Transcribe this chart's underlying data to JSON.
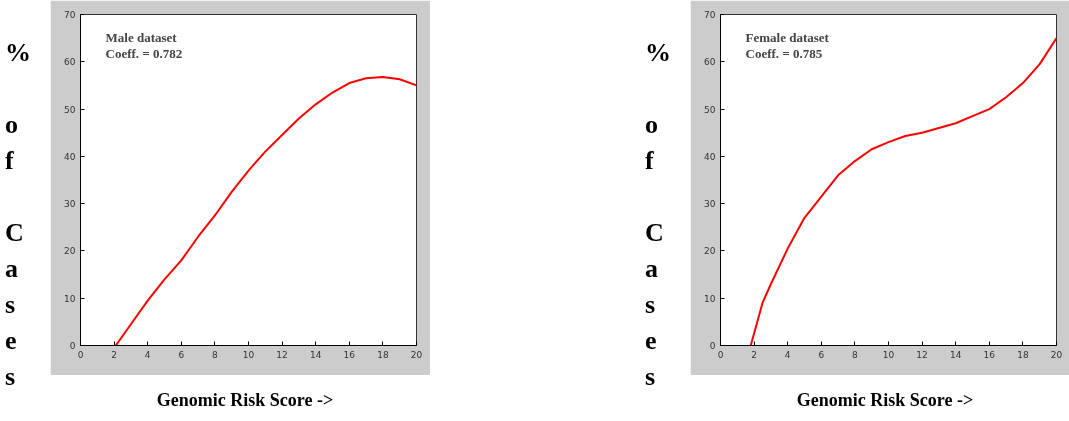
{
  "chart_data": [
    {
      "type": "line",
      "xlabel": "Genomic Risk Score ->",
      "ylabel": "% of Cases",
      "annotations": [
        "Male dataset",
        "Coeff. = 0.782"
      ],
      "series": [
        {
          "color": "#ff0000",
          "x": [
            2.1,
            3,
            4,
            5,
            6,
            7,
            8,
            9,
            10,
            11,
            12,
            13,
            14,
            15,
            16,
            17,
            18,
            19,
            20
          ],
          "values": [
            0,
            4.5,
            9.5,
            14,
            18,
            23,
            27.5,
            32.5,
            37,
            41,
            44.5,
            48,
            51,
            53.5,
            55.5,
            56.5,
            56.8,
            56.3,
            55
          ]
        }
      ],
      "xlim": [
        0,
        20
      ],
      "ylim": [
        0,
        70
      ],
      "xticks": [
        0,
        2,
        4,
        6,
        8,
        10,
        12,
        14,
        16,
        18,
        20
      ],
      "yticks": [
        0,
        10,
        20,
        30,
        40,
        50,
        60,
        70
      ],
      "grid": false,
      "line_style": "solid",
      "marker": "none"
    },
    {
      "type": "line",
      "xlabel": "Genomic Risk Score ->",
      "ylabel": "% of Cases",
      "annotations": [
        "Female dataset",
        "Coeff. = 0.785"
      ],
      "series": [
        {
          "color": "#ff0000",
          "x": [
            1.8,
            2.5,
            3,
            4,
            5,
            6,
            7,
            8,
            9,
            10,
            11,
            12,
            13,
            14,
            15,
            16,
            17,
            18,
            19,
            20
          ],
          "values": [
            0,
            9,
            13,
            20.5,
            27,
            31.5,
            36,
            39,
            41.5,
            43,
            44.3,
            45,
            46,
            47,
            48.5,
            50,
            52.5,
            55.5,
            59.5,
            65
          ]
        }
      ],
      "xlim": [
        0,
        20
      ],
      "ylim": [
        0,
        70
      ],
      "xticks": [
        0,
        2,
        4,
        6,
        8,
        10,
        12,
        14,
        16,
        18,
        20
      ],
      "yticks": [
        0,
        10,
        20,
        30,
        40,
        50,
        60,
        70
      ],
      "grid": false,
      "line_style": "solid",
      "marker": "none"
    }
  ]
}
